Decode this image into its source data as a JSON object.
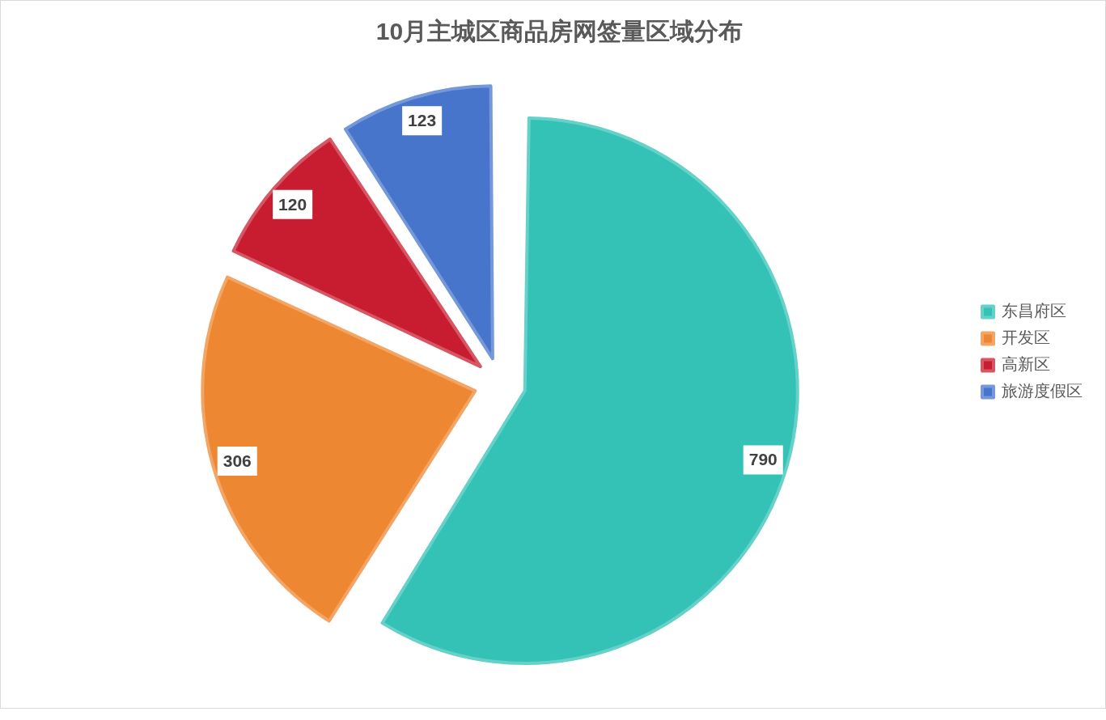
{
  "chart_data": {
    "type": "pie",
    "title": "10月主城区商品房网签量区域分布",
    "categories": [
      "东昌府区",
      "开发区",
      "高新区",
      "旅游度假区"
    ],
    "values": [
      790,
      306,
      120,
      123
    ],
    "colors": [
      "#33c2b5",
      "#ee8731",
      "#c81d30",
      "#4775cc"
    ],
    "data_labels": true,
    "legend": "right"
  }
}
